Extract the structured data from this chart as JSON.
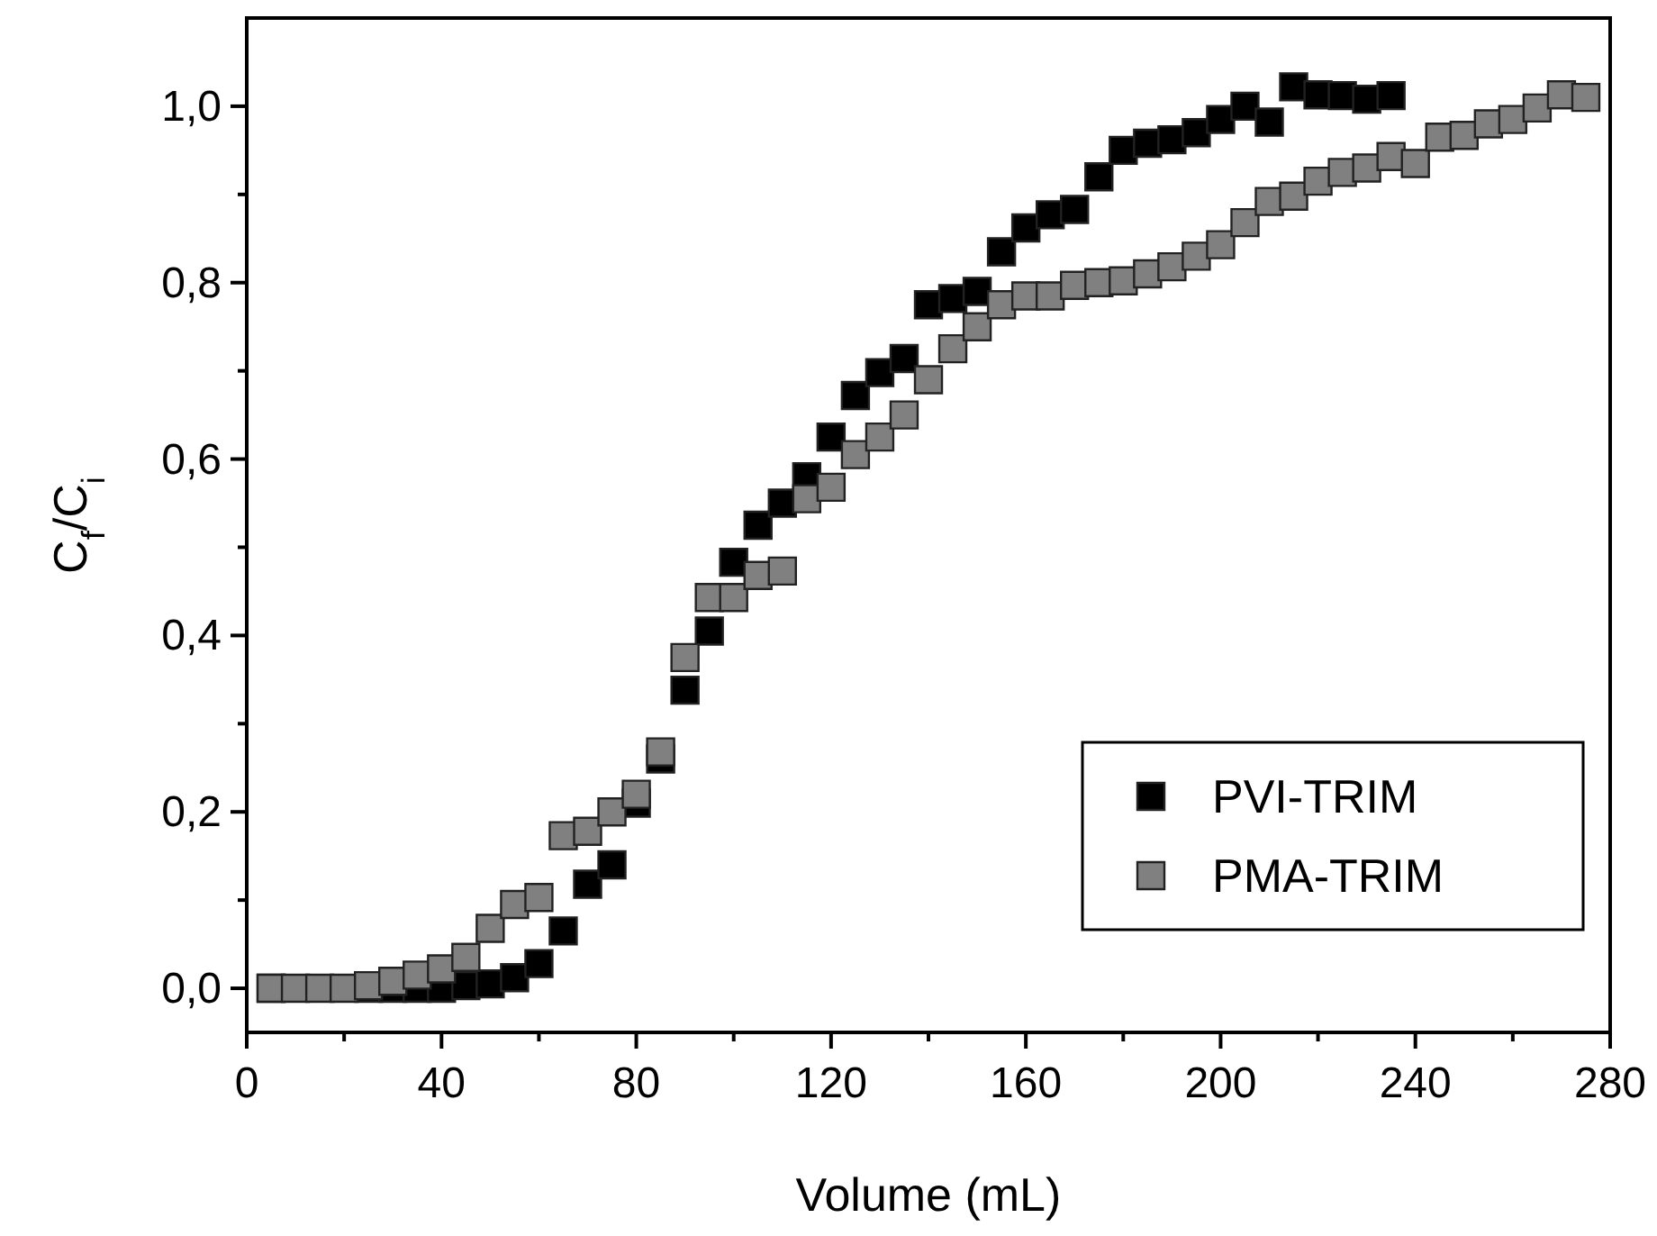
{
  "chart_data": {
    "type": "scatter",
    "xlabel": "Volume (mL)",
    "ylabel": "C$_{f}$/C$_{i}$",
    "xlim": [
      0,
      280
    ],
    "ylim": [
      -0.05,
      1.1
    ],
    "xticks": [
      0,
      {
        "value": 20,
        "label": null
      },
      40,
      {
        "value": 60,
        "label": null
      },
      80,
      {
        "value": 100,
        "label": null
      },
      120,
      {
        "value": 140,
        "label": null
      },
      160,
      {
        "value": 180,
        "label": null
      },
      200,
      {
        "value": 220,
        "label": null
      },
      240,
      {
        "value": 260,
        "label": null
      },
      280
    ],
    "yticks": [
      {
        "value": 0,
        "label": "0,0"
      },
      {
        "value": 0.1,
        "label": null
      },
      {
        "value": 0.2,
        "label": "0,2"
      },
      {
        "value": 0.3,
        "label": null
      },
      {
        "value": 0.4,
        "label": "0,4"
      },
      {
        "value": 0.5,
        "label": null
      },
      {
        "value": 0.6,
        "label": "0,6"
      },
      {
        "value": 0.7,
        "label": null
      },
      {
        "value": 0.8,
        "label": "0,8"
      },
      {
        "value": 0.9,
        "label": null
      },
      {
        "value": 1.0,
        "label": "1,0"
      }
    ],
    "marker": "square",
    "legend": "bottom right",
    "grid": false,
    "series": [
      {
        "name": "PVI-TRIM",
        "color": "#000000",
        "x": [
          5,
          25,
          30,
          35,
          40,
          45,
          50,
          55,
          60,
          65,
          70,
          75,
          80,
          85,
          90,
          95,
          100,
          105,
          110,
          115,
          120,
          125,
          130,
          135,
          140,
          145,
          150,
          155,
          160,
          165,
          170,
          175,
          180,
          185,
          190,
          195,
          200,
          205,
          210,
          215,
          220,
          225,
          230,
          235
        ],
        "values": [
          0,
          0,
          0,
          0,
          0,
          0.003,
          0.005,
          0.012,
          0.028,
          0.065,
          0.118,
          0.14,
          0.21,
          0.26,
          0.338,
          0.405,
          0.483,
          0.525,
          0.55,
          0.58,
          0.625,
          0.672,
          0.698,
          0.714,
          0.775,
          0.782,
          0.79,
          0.835,
          0.862,
          0.877,
          0.883,
          0.92,
          0.95,
          0.958,
          0.962,
          0.97,
          0.985,
          1.0,
          0.982,
          1.022,
          1.013,
          1.012,
          1.008,
          1.012
        ]
      },
      {
        "name": "PMA-TRIM",
        "color": "#808080",
        "x": [
          5,
          10,
          15,
          20,
          25,
          30,
          35,
          40,
          45,
          50,
          55,
          60,
          65,
          70,
          75,
          80,
          85,
          90,
          95,
          100,
          105,
          110,
          115,
          120,
          125,
          130,
          135,
          140,
          145,
          150,
          155,
          160,
          165,
          170,
          175,
          180,
          185,
          190,
          195,
          200,
          205,
          210,
          215,
          220,
          225,
          230,
          235,
          240,
          245,
          250,
          255,
          260,
          265,
          270,
          275
        ],
        "values": [
          0,
          0,
          0,
          0,
          0.003,
          0.008,
          0.015,
          0.022,
          0.035,
          0.068,
          0.095,
          0.103,
          0.173,
          0.178,
          0.2,
          0.22,
          0.268,
          0.375,
          0.443,
          0.443,
          0.468,
          0.473,
          0.555,
          0.568,
          0.605,
          0.625,
          0.65,
          0.69,
          0.725,
          0.75,
          0.775,
          0.785,
          0.785,
          0.797,
          0.8,
          0.802,
          0.81,
          0.818,
          0.83,
          0.843,
          0.868,
          0.892,
          0.898,
          0.915,
          0.925,
          0.93,
          0.943,
          0.935,
          0.965,
          0.967,
          0.98,
          0.985,
          0.998,
          1.013,
          1.01
        ]
      }
    ]
  }
}
